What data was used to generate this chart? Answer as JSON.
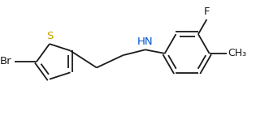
{
  "background_color": "#ffffff",
  "line_color": "#1a1a1a",
  "label_S": "#c8a000",
  "label_N": "#0055cc",
  "label_Br": "#1a1a1a",
  "label_F": "#1a1a1a",
  "label_CH3": "#1a1a1a",
  "figsize": [
    3.31,
    1.48
  ],
  "dpi": 100,
  "line_width": 1.3,
  "font_size": 9.5,
  "xlim": [
    -0.5,
    7.8
  ],
  "ylim": [
    -1.6,
    1.8
  ]
}
